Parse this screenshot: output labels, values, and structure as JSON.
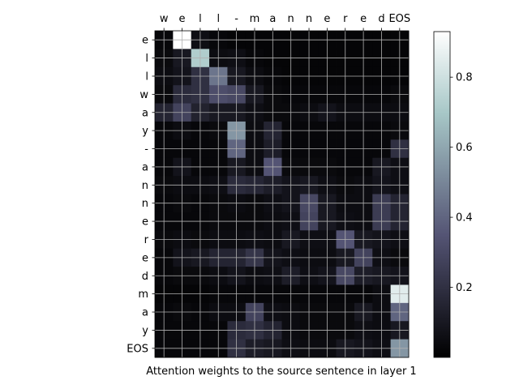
{
  "chart_data": {
    "type": "heatmap",
    "xlabel": "Attention weights to the source sentence in layer 1",
    "x_tick_labels": [
      "w",
      "e",
      "l",
      "l",
      "-",
      "m",
      "a",
      "n",
      "n",
      "e",
      "r",
      "e",
      "d",
      "EOS"
    ],
    "y_tick_labels": [
      "e",
      "l",
      "l",
      "w",
      "a",
      "y",
      "-",
      "a",
      "n",
      "n",
      "e",
      "r",
      "e",
      "d",
      "m",
      "a",
      "y",
      "EOS"
    ],
    "x_ticks_position": "top",
    "grid": true,
    "colormap": "bone",
    "colorbar": {
      "location": "right",
      "range": [
        0.0,
        0.93
      ],
      "ticks": [
        0.2,
        0.4,
        0.6,
        0.8
      ],
      "tick_labels": [
        "0.2",
        "0.4",
        "0.6",
        "0.8"
      ]
    },
    "values": [
      [
        0.03,
        0.93,
        0.06,
        0.03,
        0.02,
        0.02,
        0.02,
        0.02,
        0.02,
        0.02,
        0.02,
        0.02,
        0.02,
        0.02
      ],
      [
        0.04,
        0.1,
        0.72,
        0.05,
        0.06,
        0.03,
        0.02,
        0.02,
        0.02,
        0.02,
        0.02,
        0.02,
        0.02,
        0.02
      ],
      [
        0.05,
        0.08,
        0.2,
        0.45,
        0.1,
        0.05,
        0.03,
        0.02,
        0.02,
        0.02,
        0.02,
        0.02,
        0.02,
        0.02
      ],
      [
        0.04,
        0.18,
        0.2,
        0.32,
        0.3,
        0.1,
        0.04,
        0.03,
        0.03,
        0.03,
        0.03,
        0.03,
        0.03,
        0.04
      ],
      [
        0.15,
        0.28,
        0.14,
        0.1,
        0.1,
        0.06,
        0.04,
        0.04,
        0.05,
        0.08,
        0.05,
        0.05,
        0.05,
        0.05
      ],
      [
        0.03,
        0.05,
        0.03,
        0.04,
        0.55,
        0.05,
        0.15,
        0.03,
        0.03,
        0.03,
        0.03,
        0.03,
        0.03,
        0.04
      ],
      [
        0.03,
        0.03,
        0.03,
        0.03,
        0.4,
        0.05,
        0.12,
        0.03,
        0.03,
        0.03,
        0.03,
        0.03,
        0.03,
        0.2
      ],
      [
        0.03,
        0.08,
        0.03,
        0.03,
        0.1,
        0.05,
        0.35,
        0.04,
        0.04,
        0.04,
        0.03,
        0.03,
        0.1,
        0.06
      ],
      [
        0.04,
        0.05,
        0.05,
        0.06,
        0.18,
        0.16,
        0.12,
        0.08,
        0.1,
        0.06,
        0.04,
        0.05,
        0.08,
        0.06
      ],
      [
        0.03,
        0.04,
        0.03,
        0.04,
        0.05,
        0.04,
        0.06,
        0.08,
        0.3,
        0.1,
        0.05,
        0.05,
        0.25,
        0.15
      ],
      [
        0.03,
        0.03,
        0.03,
        0.04,
        0.04,
        0.04,
        0.05,
        0.06,
        0.28,
        0.1,
        0.06,
        0.05,
        0.25,
        0.15
      ],
      [
        0.04,
        0.05,
        0.04,
        0.05,
        0.05,
        0.06,
        0.05,
        0.1,
        0.06,
        0.06,
        0.35,
        0.1,
        0.08,
        0.06
      ],
      [
        0.03,
        0.08,
        0.1,
        0.15,
        0.15,
        0.22,
        0.08,
        0.06,
        0.05,
        0.05,
        0.1,
        0.28,
        0.06,
        0.04
      ],
      [
        0.03,
        0.04,
        0.04,
        0.05,
        0.08,
        0.05,
        0.06,
        0.12,
        0.06,
        0.08,
        0.3,
        0.12,
        0.1,
        0.08
      ],
      [
        0.02,
        0.02,
        0.02,
        0.03,
        0.03,
        0.03,
        0.03,
        0.03,
        0.03,
        0.03,
        0.03,
        0.03,
        0.05,
        0.85
      ],
      [
        0.03,
        0.04,
        0.03,
        0.05,
        0.05,
        0.28,
        0.06,
        0.05,
        0.04,
        0.04,
        0.04,
        0.1,
        0.05,
        0.4
      ],
      [
        0.03,
        0.03,
        0.03,
        0.03,
        0.18,
        0.2,
        0.15,
        0.05,
        0.04,
        0.04,
        0.04,
        0.06,
        0.05,
        0.1
      ],
      [
        0.03,
        0.03,
        0.03,
        0.03,
        0.2,
        0.12,
        0.1,
        0.06,
        0.05,
        0.05,
        0.1,
        0.08,
        0.06,
        0.55
      ]
    ]
  }
}
